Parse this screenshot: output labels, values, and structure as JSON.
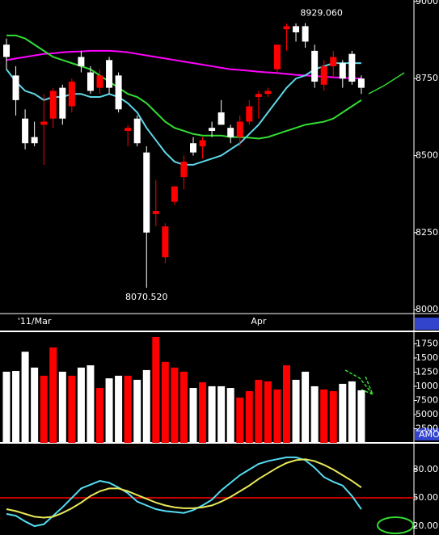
{
  "chart_data": [
    {
      "type": "candlestick",
      "categories": [
        null,
        null,
        null,
        "'11/Mar",
        null,
        null,
        null,
        null,
        null,
        null,
        null,
        null,
        null,
        null,
        null,
        null,
        null,
        null,
        null,
        null,
        null,
        null,
        null,
        null,
        null,
        null,
        null,
        "Apr",
        null,
        null,
        null,
        null,
        null,
        null,
        null,
        null,
        null,
        null,
        null
      ],
      "open": [
        8860,
        8760,
        8620,
        8560,
        8600,
        8620,
        8720,
        8660,
        8820,
        8770,
        8720,
        8810,
        8760,
        8580,
        8620,
        8510,
        8310,
        8170,
        8350,
        8430,
        8540,
        8530,
        8590,
        8640,
        8590,
        8560,
        8610,
        8690,
        8700,
        8780,
        8910,
        8920,
        8920,
        8840,
        8730,
        8790,
        8800,
        8830,
        8750
      ],
      "high": [
        8880,
        8790,
        8650,
        8610,
        8700,
        8720,
        8730,
        8750,
        8840,
        8790,
        8780,
        8820,
        8770,
        8600,
        8630,
        8530,
        8420,
        8280,
        8400,
        8500,
        8560,
        8560,
        8610,
        8680,
        8600,
        8630,
        8680,
        8710,
        8720,
        8860,
        8929.06,
        8929,
        8930,
        8860,
        8810,
        8840,
        8810,
        8840,
        8760
      ],
      "low": [
        8780,
        8630,
        8520,
        8530,
        8470,
        8590,
        8600,
        8640,
        8770,
        8700,
        8700,
        8700,
        8640,
        8530,
        8530,
        8070.52,
        8270,
        8150,
        8340,
        8390,
        8500,
        8490,
        8560,
        8600,
        8540,
        8530,
        8600,
        8620,
        8690,
        8770,
        8840,
        8870,
        8850,
        8720,
        8710,
        8750,
        8720,
        8730,
        8700
      ],
      "close": [
        8820,
        8680,
        8540,
        8540,
        8610,
        8710,
        8620,
        8740,
        8790,
        8710,
        8760,
        8720,
        8650,
        8590,
        8540,
        8250,
        8320,
        8270,
        8400,
        8480,
        8510,
        8550,
        8580,
        8600,
        8560,
        8610,
        8660,
        8700,
        8710,
        8860,
        8920,
        8900,
        8870,
        8740,
        8790,
        8820,
        8750,
        8740,
        8720
      ],
      "up_color": "#ff0000",
      "down_color": "#ffffff",
      "series": [
        {
          "color": "#ff00ff",
          "values": [
            8810,
            8815,
            8820,
            8825,
            8830,
            8832,
            8835,
            8837,
            8838,
            8840,
            8840,
            8840,
            8838,
            8835,
            8830,
            8825,
            8820,
            8815,
            8810,
            8805,
            8800,
            8795,
            8790,
            8785,
            8780,
            8778,
            8775,
            8772,
            8770,
            8768,
            8765,
            8762,
            8760,
            8758,
            8756,
            8754,
            8752,
            8751,
            8750
          ]
        },
        {
          "color": "#33dd33",
          "values": [
            8890,
            8890,
            8880,
            8860,
            8840,
            8820,
            8810,
            8800,
            8790,
            8780,
            8760,
            8740,
            8720,
            8700,
            8690,
            8670,
            8640,
            8610,
            8590,
            8580,
            8570,
            8565,
            8565,
            8565,
            8560,
            8560,
            8558,
            8555,
            8560,
            8570,
            8580,
            8590,
            8600,
            8605,
            8610,
            8620,
            8640,
            8660,
            8680
          ]
        },
        {
          "color": "#5fd7e8",
          "values": [
            8780,
            8740,
            8710,
            8700,
            8680,
            8690,
            8690,
            8700,
            8700,
            8690,
            8690,
            8700,
            8690,
            8670,
            8640,
            8590,
            8550,
            8510,
            8480,
            8470,
            8470,
            8480,
            8490,
            8500,
            8520,
            8540,
            8570,
            8600,
            8640,
            8680,
            8720,
            8750,
            8760,
            8780,
            8790,
            8800,
            8800,
            8800,
            8800
          ]
        }
      ],
      "high_label": "8929.060",
      "low_label": "8070.520",
      "ylim": [
        7987,
        9005
      ],
      "yticks": [
        9000,
        8750,
        8500,
        8250,
        8000
      ]
    },
    {
      "type": "bar",
      "label": "AMO",
      "values": [
        12570,
        12700,
        16100,
        13300,
        11860,
        16860,
        12570,
        11860,
        13300,
        13700,
        9700,
        11400,
        11860,
        11860,
        11140,
        12860,
        18700,
        14300,
        13300,
        12570,
        9700,
        10700,
        10000,
        10000,
        9700,
        8000,
        9140,
        11140,
        10860,
        9430,
        13700,
        11140,
        12570,
        10000,
        9430,
        9140,
        10430,
        10860,
        9290
      ],
      "ylim": [
        0,
        19700
      ],
      "yticks": [
        {
          "value": 17500,
          "label": "1750"
        },
        {
          "value": 15000,
          "label": "1500"
        },
        {
          "value": 12500,
          "label": "1250"
        },
        {
          "value": 10000,
          "label": "1000"
        },
        7500,
        5000,
        2500
      ]
    },
    {
      "type": "line",
      "series": [
        {
          "color": "#55ddf5",
          "values": [
            33,
            31,
            25,
            20,
            22,
            31,
            40,
            50,
            60,
            64,
            68,
            66,
            61,
            55,
            46,
            42,
            38,
            36,
            35,
            34,
            37,
            42,
            48,
            58,
            66,
            74,
            80,
            86,
            89,
            91,
            93,
            93,
            90,
            82,
            72,
            67,
            63,
            52,
            38
          ]
        },
        {
          "color": "#e8e85a",
          "values": [
            38,
            36,
            33,
            30,
            29,
            30,
            34,
            39,
            45,
            52,
            57,
            60,
            60,
            57,
            53,
            49,
            45,
            42,
            40,
            39,
            39,
            40,
            42,
            46,
            51,
            57,
            63,
            70,
            76,
            82,
            87,
            90,
            91,
            89,
            85,
            80,
            74,
            68,
            61
          ]
        }
      ],
      "hline": 50,
      "hline_color": "#ff0000",
      "ylim": [
        10.6,
        106.6
      ],
      "yticks": [
        {
          "value": 80,
          "label": "80.00"
        },
        {
          "value": 50,
          "label": "50.00"
        },
        {
          "value": 20,
          "label": "20.00"
        }
      ]
    }
  ]
}
